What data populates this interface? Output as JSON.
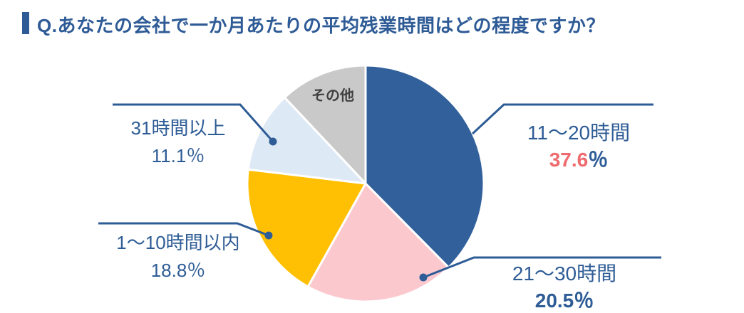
{
  "header": {
    "title": "Q.あなたの会社で一か月あたりの平均残業時間はどの程度ですか？"
  },
  "colors": {
    "title_blue": "#2E5B96",
    "text_blue": "#2E5C96",
    "leader_line_blue": "#2E5C96",
    "percent_red": "#EE6A6E",
    "slice_dark_blue": "#31609B",
    "slice_pink": "#FBC8CE",
    "slice_gold": "#FFC003",
    "slice_light_blue": "#DEE9F6",
    "slice_gray": "#C9C9C9",
    "inside_label_gray": "#404040",
    "background": "#FFFFFF"
  },
  "chart_data": {
    "type": "pie",
    "title": "Q.あなたの会社で一か月あたりの平均残業時間はどの程度ですか？",
    "start_angle_deg": 0,
    "direction": "clockwise",
    "legend_position": "callout-labels",
    "slices": [
      {
        "label": "11〜20時間",
        "value": 37.6,
        "percent_label": "37.6％",
        "color": "#31609B"
      },
      {
        "label": "21〜30時間",
        "value": 20.5,
        "percent_label": "20.5％",
        "color": "#FBC8CE"
      },
      {
        "label": "1〜10時間以内",
        "value": 18.8,
        "percent_label": "18.8％",
        "color": "#FFC003"
      },
      {
        "label": "31時間以上",
        "value": 11.1,
        "percent_label": "11.1％",
        "color": "#DEE9F6"
      },
      {
        "label": "その他",
        "value": 12.0,
        "percent_label": "",
        "color": "#C9C9C9"
      }
    ]
  },
  "callouts": {
    "right_top": {
      "label": "11〜20時間",
      "percent_value": "37.6",
      "percent_suffix": "％"
    },
    "right_bottom": {
      "label": "21〜30時間",
      "percent": "20.5％"
    },
    "left_top": {
      "label": "31時間以上",
      "percent": "11.1％"
    },
    "left_bottom": {
      "label": "1〜10時間以内",
      "percent": "18.8％"
    },
    "center": {
      "label": "その他"
    }
  }
}
